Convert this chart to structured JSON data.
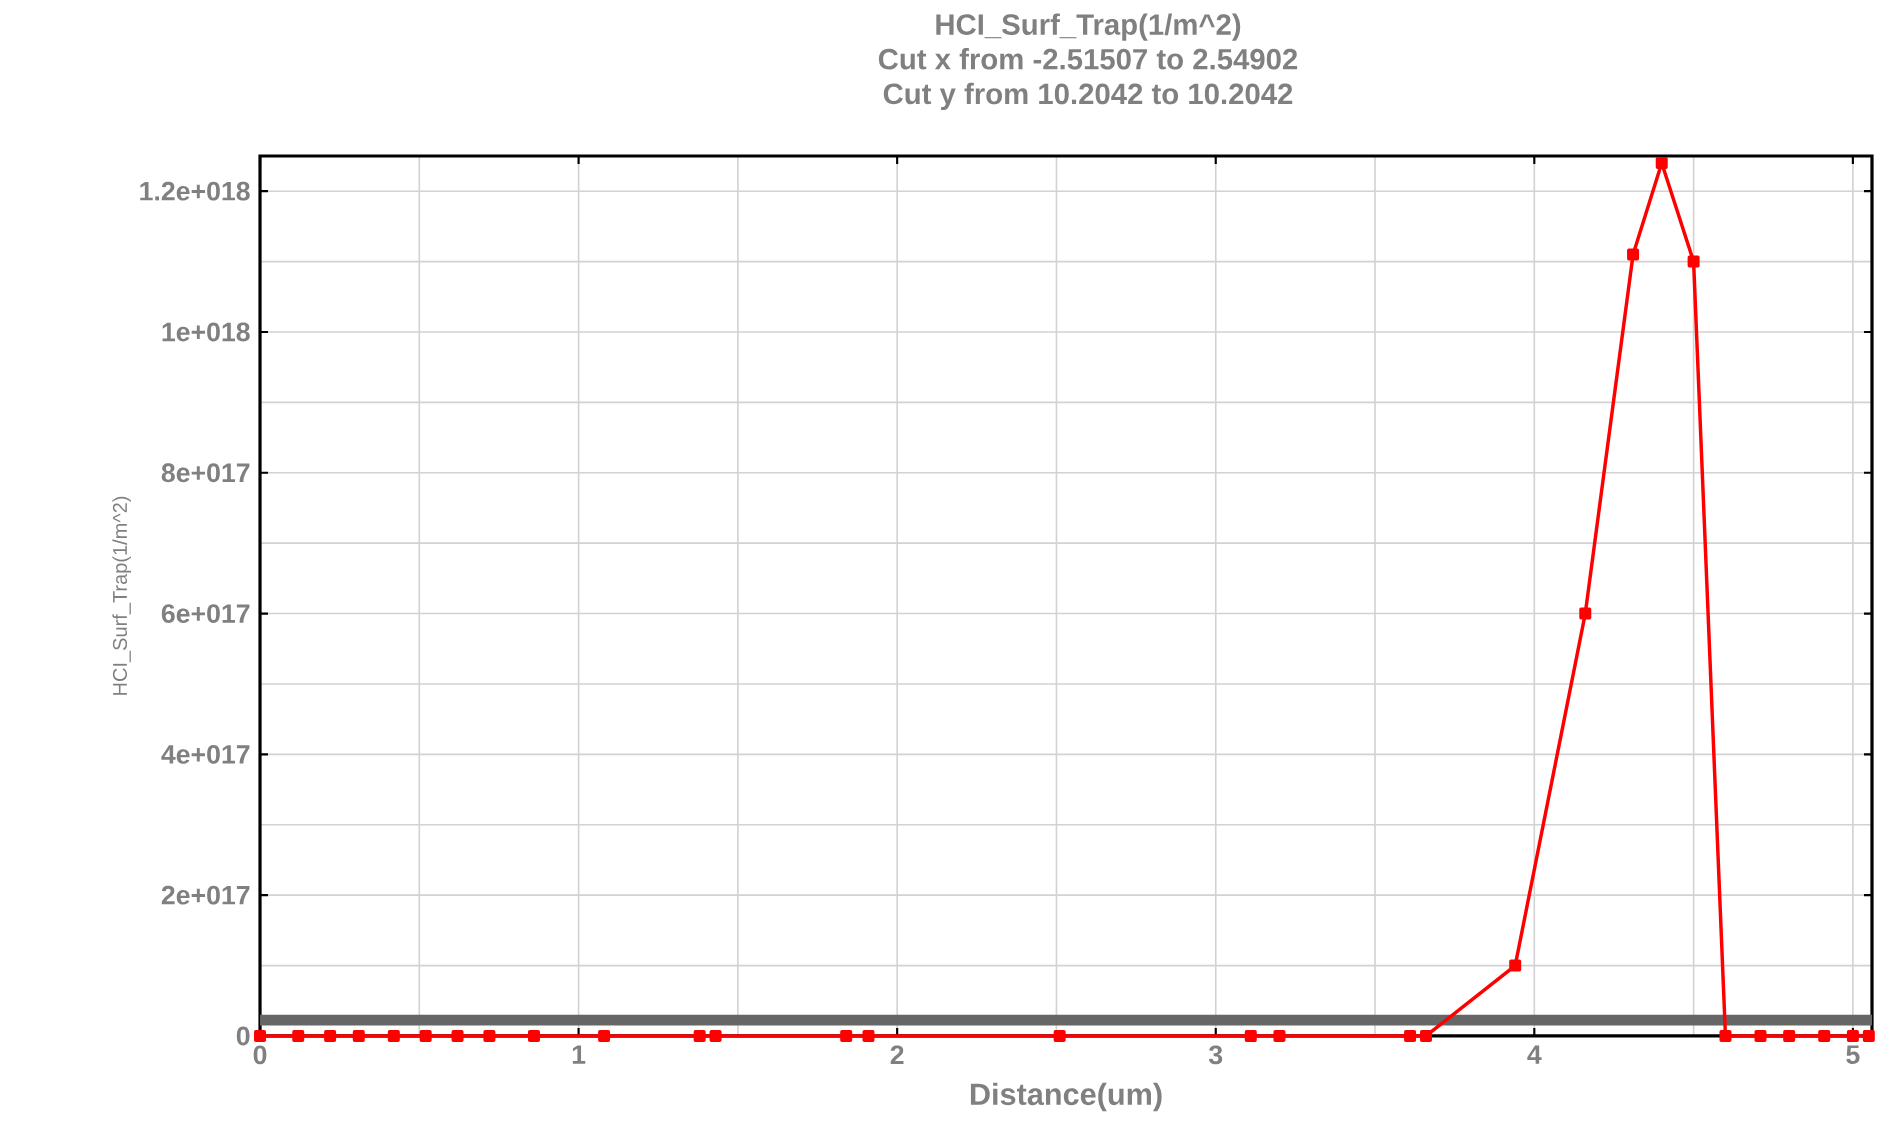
{
  "chart_data": {
    "type": "line",
    "title": "HCI_Surf_Trap(1/m^2)",
    "subtitle": "Cut x from -2.51507 to 2.54902",
    "annotations": [
      "Cut y from 10.2042 to 10.2042"
    ],
    "xlabel": "Distance(um)",
    "ylabel": "HCI_Surf_Trap(1/m^2)",
    "x": [
      0,
      0.12,
      0.22,
      0.31,
      0.42,
      0.52,
      0.62,
      0.72,
      0.86,
      1.08,
      1.38,
      1.43,
      1.84,
      1.91,
      2.51,
      3.11,
      3.2,
      3.61,
      3.66,
      3.94,
      4.16,
      4.31,
      4.4,
      4.5,
      4.6,
      4.71,
      4.8,
      4.91,
      5.0,
      5.05
    ],
    "series": [
      {
        "color": "#ff0000",
        "values": [
          0,
          0,
          0,
          0,
          0,
          0,
          0,
          0,
          0,
          0,
          0,
          0,
          0,
          0,
          0,
          0,
          0,
          0,
          0,
          1e+17,
          6e+17,
          1.11e+18,
          1.24e+18,
          1.1e+18,
          0,
          0,
          0,
          0,
          0,
          0
        ]
      }
    ],
    "xlim": [
      0,
      5.06
    ],
    "ylim": [
      0,
      1.25e+18
    ],
    "xticks": [
      0,
      1,
      2,
      3,
      4,
      5
    ],
    "yticks": [
      0,
      {
        "value": 2e+17,
        "label": "2e+017"
      },
      {
        "value": 4e+17,
        "label": "4e+017"
      },
      {
        "value": 6e+17,
        "label": "6e+017"
      },
      {
        "value": 8e+17,
        "label": "8e+017"
      },
      {
        "value": 1e+18,
        "label": "1e+018"
      },
      {
        "value": 1.2e+18,
        "label": "1.2e+018"
      }
    ],
    "bands": [
      {
        "axis": "y",
        "from": 1.5e+16,
        "to": 3e+16,
        "color": "#666666"
      }
    ],
    "grid": true,
    "marker": "square",
    "line_style": "solid"
  }
}
